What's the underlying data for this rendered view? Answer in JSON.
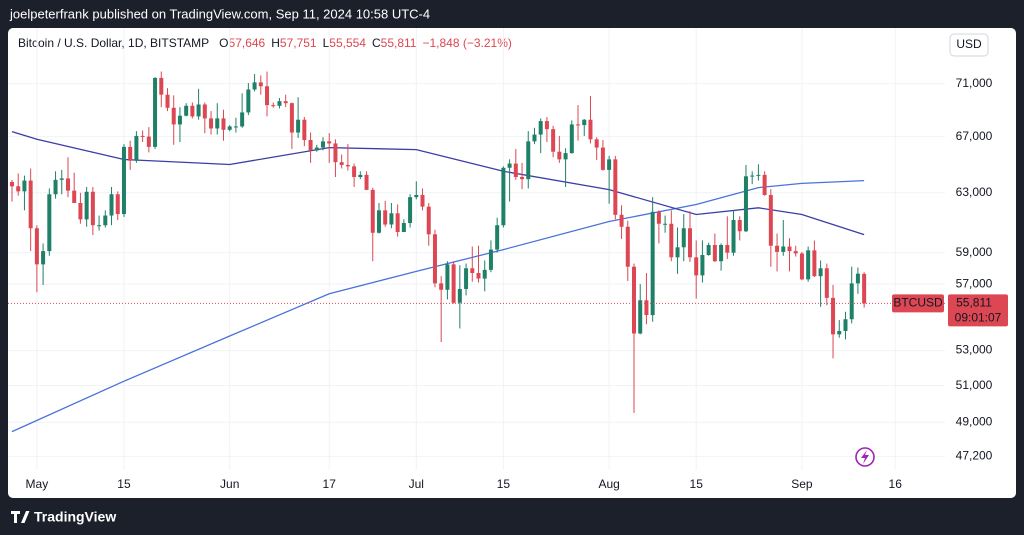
{
  "header": {
    "text": "joelpeterfrank published on TradingView.com, Sep 11, 2024 10:58 UTC-4"
  },
  "footer": {
    "brand": "TradingView"
  },
  "chart_data": {
    "type": "candlestick",
    "title": "Bitcoin / U.S. Dollar, 1D, BITSTAMP",
    "legend_values": [
      {
        "label": "O",
        "value": "57,646"
      },
      {
        "label": "H",
        "value": "57,751"
      },
      {
        "label": "L",
        "value": "55,554"
      },
      {
        "label": "C",
        "value": "55,811"
      }
    ],
    "change": "−1,848 (−3.21%)",
    "currency": "USD",
    "x": [
      "Apr 27",
      "Apr 28",
      "Apr 29",
      "Apr 30",
      "May 1",
      "May 2",
      "May 3",
      "May 4",
      "May 5",
      "May 6",
      "May 7",
      "May 8",
      "May 9",
      "May 10",
      "May 11",
      "May 12",
      "May 13",
      "May 14",
      "May 15",
      "May 16",
      "May 17",
      "May 18",
      "May 19",
      "May 20",
      "May 21",
      "May 22",
      "May 23",
      "May 24",
      "May 25",
      "May 26",
      "May 27",
      "May 28",
      "May 29",
      "May 30",
      "May 31",
      "Jun 1",
      "Jun 2",
      "Jun 3",
      "Jun 4",
      "Jun 5",
      "Jun 6",
      "Jun 7",
      "Jun 8",
      "Jun 9",
      "Jun 10",
      "Jun 11",
      "Jun 12",
      "Jun 13",
      "Jun 14",
      "Jun 15",
      "Jun 16",
      "Jun 17",
      "Jun 18",
      "Jun 19",
      "Jun 20",
      "Jun 21",
      "Jun 22",
      "Jun 23",
      "Jun 24",
      "Jun 25",
      "Jun 26",
      "Jun 27",
      "Jun 28",
      "Jun 29",
      "Jun 30",
      "Jul 1",
      "Jul 2",
      "Jul 3",
      "Jul 4",
      "Jul 5",
      "Jul 6",
      "Jul 7",
      "Jul 8",
      "Jul 9",
      "Jul 10",
      "Jul 11",
      "Jul 12",
      "Jul 13",
      "Jul 14",
      "Jul 15",
      "Jul 16",
      "Jul 17",
      "Jul 18",
      "Jul 19",
      "Jul 20",
      "Jul 21",
      "Jul 22",
      "Jul 23",
      "Jul 24",
      "Jul 25",
      "Jul 26",
      "Jul 27",
      "Jul 28",
      "Jul 29",
      "Jul 30",
      "Jul 31",
      "Aug 1",
      "Aug 2",
      "Aug 3",
      "Aug 4",
      "Aug 5",
      "Aug 6",
      "Aug 7",
      "Aug 8",
      "Aug 9",
      "Aug 10",
      "Aug 11",
      "Aug 12",
      "Aug 13",
      "Aug 14",
      "Aug 15",
      "Aug 16",
      "Aug 17",
      "Aug 18",
      "Aug 19",
      "Aug 20",
      "Aug 21",
      "Aug 22",
      "Aug 23",
      "Aug 24",
      "Aug 25",
      "Aug 26",
      "Aug 27",
      "Aug 28",
      "Aug 29",
      "Aug 30",
      "Aug 31",
      "Sep 1",
      "Sep 2",
      "Sep 3",
      "Sep 4",
      "Sep 5",
      "Sep 6",
      "Sep 7",
      "Sep 8",
      "Sep 9",
      "Sep 10",
      "Sep 11"
    ],
    "open": [
      63750,
      63450,
      63100,
      63850,
      60600,
      58250,
      59100,
      62900,
      63900,
      64000,
      63150,
      62300,
      61190,
      63070,
      60800,
      60800,
      61450,
      62900,
      61550,
      66250,
      65250,
      67050,
      67000,
      66250,
      71450,
      70150,
      69150,
      67900,
      68550,
      69300,
      68500,
      69400,
      68350,
      67600,
      68350,
      67500,
      67750,
      67750,
      68800,
      70550,
      71100,
      70800,
      69350,
      69300,
      69650,
      69500,
      67300,
      68250,
      66750,
      66000,
      66200,
      66650,
      66500,
      65150,
      64950,
      64850,
      64100,
      64250,
      63200,
      60300,
      61800,
      60850,
      61600,
      60350,
      60950,
      62700,
      62850,
      62050,
      60200,
      57050,
      56650,
      58250,
      55850,
      56700,
      58000,
      57700,
      57350,
      57900,
      59200,
      60800,
      64750,
      65050,
      64100,
      63950,
      66650,
      67150,
      68150,
      67550,
      65900,
      65350,
      65800,
      67900,
      67850,
      68250,
      66800,
      66200,
      64600,
      65350,
      61500,
      60700,
      58100,
      54000,
      56000,
      55100,
      61700,
      60900,
      60900,
      58700,
      59350,
      60600,
      58700,
      57550,
      58850,
      59500,
      58450,
      59500,
      59000,
      61150,
      60400,
      64150,
      64200,
      64250,
      62850,
      59450,
      59050,
      59400,
      59100,
      58950,
      57300,
      59150,
      57500,
      58000,
      56150,
      53950,
      54150,
      54850,
      57050,
      57646
    ],
    "high": [
      63900,
      64350,
      64200,
      64700,
      60800,
      59600,
      63300,
      64500,
      64600,
      65500,
      64400,
      63000,
      63400,
      63400,
      61450,
      61800,
      63400,
      63100,
      66450,
      66700,
      67400,
      67450,
      67700,
      71500,
      71950,
      70650,
      70100,
      69200,
      69500,
      69550,
      70600,
      69550,
      68900,
      69500,
      69000,
      67850,
      68400,
      70250,
      71050,
      71750,
      71650,
      71950,
      69550,
      69900,
      70150,
      69550,
      69950,
      68450,
      67300,
      66400,
      66950,
      67250,
      66800,
      65700,
      66450,
      65050,
      64500,
      64500,
      63350,
      62300,
      62450,
      62300,
      62200,
      61200,
      62900,
      63800,
      63300,
      62300,
      60500,
      57500,
      58450,
      58450,
      58200,
      58300,
      59400,
      59450,
      58500,
      59800,
      61300,
      64850,
      65350,
      66100,
      65100,
      67400,
      67650,
      68350,
      68450,
      67800,
      67050,
      66150,
      68200,
      69350,
      68300,
      70050,
      66950,
      66750,
      65600,
      65600,
      62150,
      61100,
      58300,
      57000,
      57700,
      62700,
      61800,
      61450,
      61800,
      60650,
      61550,
      61750,
      59800,
      59800,
      59650,
      60250,
      59600,
      61400,
      61800,
      61400,
      64950,
      64500,
      65000,
      64500,
      63250,
      60250,
      61150,
      59950,
      59450,
      59050,
      59400,
      59800,
      58500,
      58300,
      56950,
      54800,
      55300,
      58100,
      58050,
      57751
    ],
    "low": [
      62400,
      62800,
      61800,
      59100,
      56500,
      56950,
      58800,
      62600,
      62900,
      62700,
      62300,
      60900,
      60700,
      60150,
      60450,
      60650,
      60800,
      61150,
      61350,
      64600,
      65100,
      66600,
      65850,
      66100,
      69200,
      68900,
      66400,
      66600,
      68500,
      68350,
      68250,
      67250,
      67150,
      67150,
      66700,
      67400,
      67300,
      67650,
      68600,
      70400,
      70150,
      68500,
      69150,
      69100,
      69200,
      66100,
      66900,
      66300,
      65100,
      65900,
      66000,
      65100,
      64100,
      64700,
      64550,
      63400,
      63950,
      63200,
      58450,
      60250,
      60700,
      60600,
      60050,
      60350,
      60650,
      62550,
      61800,
      59450,
      56800,
      53500,
      56050,
      55800,
      54300,
      56300,
      57150,
      57100,
      56550,
      57750,
      59000,
      60650,
      62400,
      63900,
      63250,
      63300,
      66450,
      65800,
      66600,
      65500,
      65100,
      63400,
      65750,
      66700,
      67050,
      66500,
      65300,
      64550,
      62250,
      61200,
      59900,
      57200,
      49500,
      53950,
      54550,
      54700,
      59600,
      60300,
      58450,
      57650,
      58450,
      58400,
      56100,
      57100,
      58800,
      58400,
      57850,
      58600,
      58800,
      59800,
      60350,
      63600,
      63850,
      62800,
      58100,
      57800,
      58800,
      57800,
      58750,
      57250,
      57150,
      57450,
      55600,
      55700,
      52550,
      53750,
      53650,
      54600,
      56400,
      55554
    ],
    "close": [
      63450,
      63100,
      63850,
      60600,
      58250,
      59100,
      62900,
      63900,
      64000,
      63150,
      62300,
      61190,
      63070,
      60800,
      60800,
      61450,
      62900,
      61550,
      66250,
      65250,
      67050,
      67000,
      66250,
      71450,
      70150,
      69150,
      67900,
      68550,
      69300,
      68500,
      69400,
      68350,
      67600,
      68350,
      67500,
      67750,
      67750,
      68800,
      70550,
      71100,
      70800,
      69350,
      69300,
      69650,
      69500,
      67300,
      68250,
      66750,
      66000,
      66200,
      66650,
      66500,
      65150,
      64950,
      64850,
      64100,
      64250,
      63200,
      60300,
      61800,
      60850,
      61600,
      60350,
      60950,
      62700,
      62850,
      62050,
      60200,
      57050,
      56650,
      58250,
      55850,
      56700,
      58000,
      57700,
      57350,
      57900,
      59200,
      60800,
      64750,
      65050,
      64100,
      63950,
      66650,
      67150,
      68150,
      67550,
      65900,
      65350,
      65800,
      67900,
      67850,
      68250,
      66800,
      66200,
      64600,
      65350,
      61500,
      60700,
      58100,
      54000,
      56000,
      55100,
      61700,
      60900,
      60900,
      58700,
      59350,
      60600,
      58700,
      57550,
      58850,
      59500,
      58450,
      59500,
      59000,
      61150,
      60400,
      64150,
      64200,
      64250,
      62850,
      59450,
      59050,
      59400,
      59100,
      58950,
      57300,
      59150,
      57500,
      58000,
      56150,
      53950,
      54150,
      54850,
      57050,
      57659,
      55811
    ],
    "up_color": "#1f8068",
    "down_color": "#dc4753",
    "overlays": [
      {
        "type": "line",
        "color": "#4a73d9",
        "x": [
          "Apr 27",
          "May 15",
          "Jun 1",
          "Jun 17",
          "Jul 1",
          "Jul 15",
          "Aug 1",
          "Aug 15",
          "Aug 25",
          "Sep 1",
          "Sep 11"
        ],
        "values": [
          48500,
          51250,
          53850,
          56400,
          57800,
          59200,
          61050,
          62200,
          63360,
          63650,
          63850
        ]
      },
      {
        "type": "line",
        "color": "#3c3ca8",
        "x": [
          "Apr 27",
          "May 1",
          "May 15",
          "Jun 1",
          "Jun 17",
          "Jul 1",
          "Jul 15",
          "Aug 1",
          "Aug 15",
          "Aug 25",
          "Sep 1",
          "Sep 11"
        ],
        "values": [
          67370,
          66800,
          65340,
          64980,
          66200,
          66050,
          64500,
          63220,
          61520,
          61970,
          61520,
          60180
        ]
      }
    ],
    "ylim": [
      46500,
      75300
    ],
    "log_scale": true,
    "yticks": [
      {
        "value": 71000,
        "label": "71,000"
      },
      {
        "value": 67000,
        "label": "67,000"
      },
      {
        "value": 63000,
        "label": "63,000"
      },
      {
        "value": 59000,
        "label": "59,000"
      },
      {
        "value": 57000,
        "label": "57,000"
      },
      {
        "value": 53000,
        "label": "53,000"
      },
      {
        "value": 51000,
        "label": "51,000"
      },
      {
        "value": 49000,
        "label": "49,000"
      },
      {
        "value": 47200,
        "label": "47,200"
      }
    ],
    "xticks": [
      {
        "value": "May 1",
        "label": "May"
      },
      {
        "value": "May 15",
        "label": "15"
      },
      {
        "value": "Jun 1",
        "label": "Jun"
      },
      {
        "value": "Jun 17",
        "label": "17"
      },
      {
        "value": "Jul 1",
        "label": "Jul"
      },
      {
        "value": "Jul 15",
        "label": "15"
      },
      {
        "value": "Aug 1",
        "label": "Aug"
      },
      {
        "value": "Aug 15",
        "label": "15"
      },
      {
        "value": "Sep 1",
        "label": "Sep"
      },
      {
        "value": "Sep 16",
        "label": "16"
      }
    ],
    "grid": true,
    "last_price": {
      "value": 55811,
      "label": "55,811",
      "symbol": "BTCUSD",
      "countdown": "09:01:07"
    }
  }
}
